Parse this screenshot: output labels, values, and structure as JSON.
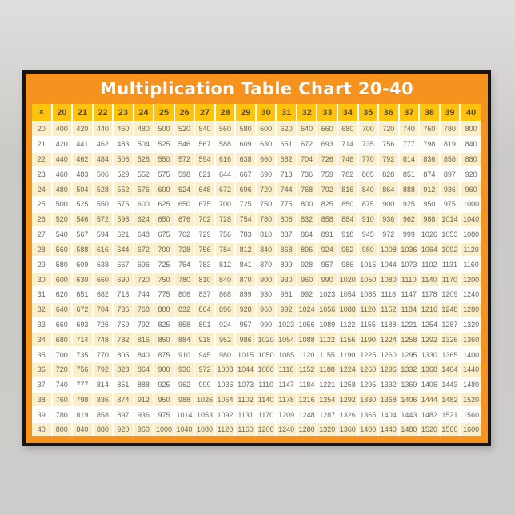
{
  "poster": {
    "title": "Multiplication Table Chart 20-40",
    "colors": {
      "wall_gray": "#cbcac8",
      "frame_black": "#161414",
      "poster_orange": "#f6921e",
      "header_yellow": "#ffc30d",
      "row_cream": "#faefc8",
      "row_white": "#fdfdfc",
      "header_text": "#4e4733",
      "cell_text": "#6e6760",
      "title_text": "#ffffff"
    }
  },
  "chart_data": {
    "type": "table",
    "title": "Multiplication Table Chart 20-40",
    "corner_label": "×",
    "columns": [
      20,
      21,
      22,
      23,
      24,
      25,
      26,
      27,
      28,
      29,
      30,
      31,
      32,
      33,
      34,
      35,
      36,
      37,
      38,
      39,
      40
    ],
    "rows": [
      20,
      21,
      22,
      23,
      24,
      25,
      26,
      27,
      28,
      29,
      30,
      31,
      32,
      33,
      34,
      35,
      36,
      37,
      38,
      39,
      40
    ],
    "values": [
      [
        400,
        420,
        440,
        460,
        480,
        500,
        520,
        540,
        560,
        580,
        600,
        620,
        640,
        660,
        680,
        700,
        720,
        740,
        760,
        780,
        800
      ],
      [
        420,
        441,
        462,
        483,
        504,
        525,
        546,
        567,
        588,
        609,
        630,
        651,
        672,
        693,
        714,
        735,
        756,
        777,
        798,
        819,
        840
      ],
      [
        440,
        462,
        484,
        506,
        528,
        550,
        572,
        594,
        616,
        638,
        660,
        682,
        704,
        726,
        748,
        770,
        792,
        814,
        836,
        858,
        880
      ],
      [
        460,
        483,
        506,
        529,
        552,
        575,
        598,
        621,
        644,
        667,
        690,
        713,
        736,
        759,
        782,
        805,
        828,
        851,
        874,
        897,
        920
      ],
      [
        480,
        504,
        528,
        552,
        576,
        600,
        624,
        648,
        672,
        696,
        720,
        744,
        768,
        792,
        816,
        840,
        864,
        888,
        912,
        936,
        960
      ],
      [
        500,
        525,
        550,
        575,
        600,
        625,
        650,
        675,
        700,
        725,
        750,
        775,
        800,
        825,
        850,
        875,
        900,
        925,
        950,
        975,
        1000
      ],
      [
        520,
        546,
        572,
        598,
        624,
        650,
        676,
        702,
        728,
        754,
        780,
        806,
        832,
        858,
        884,
        910,
        936,
        962,
        988,
        1014,
        1040
      ],
      [
        540,
        567,
        594,
        621,
        648,
        675,
        702,
        729,
        756,
        783,
        810,
        837,
        864,
        891,
        918,
        945,
        972,
        999,
        1026,
        1053,
        1080
      ],
      [
        560,
        588,
        616,
        644,
        672,
        700,
        728,
        756,
        784,
        812,
        840,
        868,
        896,
        924,
        952,
        980,
        1008,
        1036,
        1064,
        1092,
        1120
      ],
      [
        580,
        609,
        638,
        667,
        696,
        725,
        754,
        783,
        812,
        841,
        870,
        899,
        928,
        957,
        986,
        1015,
        1044,
        1073,
        1102,
        1131,
        1160
      ],
      [
        600,
        630,
        660,
        690,
        720,
        750,
        780,
        810,
        840,
        870,
        900,
        930,
        960,
        990,
        1020,
        1050,
        1080,
        1110,
        1140,
        1170,
        1200
      ],
      [
        620,
        651,
        682,
        713,
        744,
        775,
        806,
        837,
        868,
        899,
        930,
        961,
        992,
        1023,
        1054,
        1085,
        1116,
        1147,
        1178,
        1209,
        1240
      ],
      [
        640,
        672,
        704,
        736,
        768,
        800,
        832,
        864,
        896,
        928,
        960,
        992,
        1024,
        1056,
        1088,
        1120,
        1152,
        1184,
        1216,
        1248,
        1280
      ],
      [
        660,
        693,
        726,
        759,
        792,
        825,
        858,
        891,
        924,
        957,
        990,
        1023,
        1056,
        1089,
        1122,
        1155,
        1188,
        1221,
        1254,
        1287,
        1320
      ],
      [
        680,
        714,
        748,
        782,
        816,
        850,
        884,
        918,
        952,
        986,
        1020,
        1054,
        1088,
        1122,
        1156,
        1190,
        1224,
        1258,
        1292,
        1326,
        1360
      ],
      [
        700,
        735,
        770,
        805,
        840,
        875,
        910,
        945,
        980,
        1015,
        1050,
        1085,
        1120,
        1155,
        1190,
        1225,
        1260,
        1295,
        1330,
        1365,
        1400
      ],
      [
        720,
        756,
        792,
        828,
        864,
        900,
        936,
        972,
        1008,
        1044,
        1080,
        1116,
        1152,
        1188,
        1224,
        1260,
        1296,
        1332,
        1368,
        1404,
        1440
      ],
      [
        740,
        777,
        814,
        851,
        888,
        925,
        962,
        999,
        1036,
        1073,
        1110,
        1147,
        1184,
        1221,
        1258,
        1295,
        1332,
        1369,
        1406,
        1443,
        1480
      ],
      [
        760,
        798,
        836,
        874,
        912,
        950,
        988,
        1026,
        1064,
        1102,
        1140,
        1178,
        1216,
        1254,
        1292,
        1330,
        1368,
        1406,
        1444,
        1482,
        1520
      ],
      [
        780,
        819,
        858,
        897,
        936,
        975,
        1014,
        1053,
        1092,
        1131,
        1170,
        1209,
        1248,
        1287,
        1326,
        1365,
        1404,
        1443,
        1482,
        1521,
        1560
      ],
      [
        800,
        840,
        880,
        920,
        960,
        1000,
        1040,
        1080,
        1120,
        1160,
        1200,
        1240,
        1280,
        1320,
        1360,
        1400,
        1440,
        1480,
        1520,
        1560,
        1600
      ]
    ]
  }
}
